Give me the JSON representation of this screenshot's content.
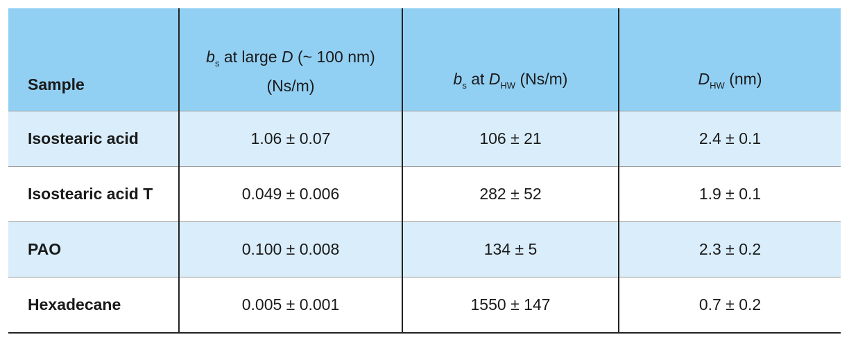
{
  "table": {
    "header": [
      [
        "Sample"
      ],
      [
        "b",
        "s",
        "at large",
        "D",
        "(~ 100 nm)",
        "(Ns/m)"
      ],
      [
        "b",
        "s",
        "at",
        "D",
        "HW",
        "(Ns/m)"
      ],
      [
        "D",
        "HW",
        "(nm)"
      ]
    ],
    "rows": [
      [
        "Isostearic acid",
        "1.06 ± 0.07",
        "106 ± 21",
        "2.4 ± 0.1"
      ],
      [
        "Isostearic acid T",
        "0.049 ± 0.006",
        "282 ± 52",
        "1.9 ± 0.1"
      ],
      [
        "PAO",
        "0.100 ± 0.008",
        "134 ± 5",
        "2.3 ± 0.2"
      ],
      [
        "Hexadecane",
        "0.005 ± 0.001",
        "1550 ± 147",
        "0.7 ± 0.2"
      ]
    ]
  }
}
